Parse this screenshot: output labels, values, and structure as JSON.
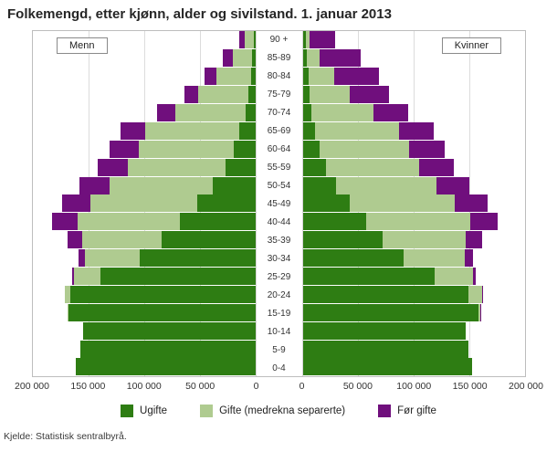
{
  "title": "Folkemengd, etter kjønn, alder og sivilstand. 1. januar 2013",
  "source": "Kjelde: Statistisk sentralbyrå.",
  "chart_data": {
    "type": "bar",
    "subtype": "population_pyramid",
    "left_label": "Menn",
    "right_label": "Kvinner",
    "x_max": 200000,
    "x_ticks_left": [
      "200 000",
      "150 000",
      "100 000",
      "50 000",
      "0"
    ],
    "x_ticks_right": [
      "0",
      "50 000",
      "100 000",
      "150 000",
      "200 000"
    ],
    "age_groups": [
      "90 +",
      "85-89",
      "80-84",
      "75-79",
      "70-74",
      "65-69",
      "60-64",
      "55-59",
      "50-54",
      "45-49",
      "40-44",
      "35-39",
      "30-34",
      "25-29",
      "20-24",
      "15-19",
      "10-14",
      "5-9",
      "0-4"
    ],
    "legend": [
      {
        "key": "ugifte",
        "label": "Ugifte",
        "color": "#2e7d13"
      },
      {
        "key": "gifte",
        "label": "Gifte (medrekna separerte)",
        "color": "#afcb90"
      },
      {
        "key": "for_gifte",
        "label": "Før gifte",
        "color": "#700f7d"
      }
    ],
    "men": [
      {
        "age": "90 +",
        "ugifte": 1500,
        "gifte": 8000,
        "for_gifte": 4500
      },
      {
        "age": "85-89",
        "ugifte": 2500,
        "gifte": 18000,
        "for_gifte": 8500
      },
      {
        "age": "80-84",
        "ugifte": 4000,
        "gifte": 31000,
        "for_gifte": 11000
      },
      {
        "age": "75-79",
        "ugifte": 6000,
        "gifte": 45000,
        "for_gifte": 13000
      },
      {
        "age": "70-74",
        "ugifte": 9000,
        "gifte": 63000,
        "for_gifte": 16000
      },
      {
        "age": "65-69",
        "ugifte": 14000,
        "gifte": 85000,
        "for_gifte": 22000
      },
      {
        "age": "60-64",
        "ugifte": 19000,
        "gifte": 86000,
        "for_gifte": 26000
      },
      {
        "age": "55-59",
        "ugifte": 27000,
        "gifte": 88000,
        "for_gifte": 27000
      },
      {
        "age": "50-54",
        "ugifte": 38000,
        "gifte": 93000,
        "for_gifte": 27000
      },
      {
        "age": "45-49",
        "ugifte": 52000,
        "gifte": 96000,
        "for_gifte": 26000
      },
      {
        "age": "40-44",
        "ugifte": 68000,
        "gifte": 92000,
        "for_gifte": 23000
      },
      {
        "age": "35-39",
        "ugifte": 84000,
        "gifte": 72000,
        "for_gifte": 13000
      },
      {
        "age": "30-34",
        "ugifte": 104000,
        "gifte": 49000,
        "for_gifte": 6000
      },
      {
        "age": "25-29",
        "ugifte": 139000,
        "gifte": 24000,
        "for_gifte": 2000
      },
      {
        "age": "20-24",
        "ugifte": 166000,
        "gifte": 5000,
        "for_gifte": 300
      },
      {
        "age": "15-19",
        "ugifte": 168000,
        "gifte": 600,
        "for_gifte": 0
      },
      {
        "age": "10-14",
        "ugifte": 155000,
        "gifte": 0,
        "for_gifte": 0
      },
      {
        "age": "5-9",
        "ugifte": 157000,
        "gifte": 0,
        "for_gifte": 0
      },
      {
        "age": "0-4",
        "ugifte": 161000,
        "gifte": 0,
        "for_gifte": 0
      }
    ],
    "kvinner": [
      {
        "age": "90 +",
        "ugifte": 2500,
        "gifte": 3500,
        "for_gifte": 23000
      },
      {
        "age": "85-89",
        "ugifte": 4000,
        "gifte": 11000,
        "for_gifte": 37000
      },
      {
        "age": "80-84",
        "ugifte": 5000,
        "gifte": 23000,
        "for_gifte": 41000
      },
      {
        "age": "75-79",
        "ugifte": 6000,
        "gifte": 36000,
        "for_gifte": 36000
      },
      {
        "age": "70-74",
        "ugifte": 8000,
        "gifte": 56000,
        "for_gifte": 31000
      },
      {
        "age": "65-69",
        "ugifte": 11000,
        "gifte": 76000,
        "for_gifte": 31000
      },
      {
        "age": "60-64",
        "ugifte": 15000,
        "gifte": 81000,
        "for_gifte": 32000
      },
      {
        "age": "55-59",
        "ugifte": 21000,
        "gifte": 84000,
        "for_gifte": 31000
      },
      {
        "age": "50-54",
        "ugifte": 30000,
        "gifte": 90000,
        "for_gifte": 30000
      },
      {
        "age": "45-49",
        "ugifte": 42000,
        "gifte": 95000,
        "for_gifte": 29000
      },
      {
        "age": "40-44",
        "ugifte": 57000,
        "gifte": 94000,
        "for_gifte": 24000
      },
      {
        "age": "35-39",
        "ugifte": 72000,
        "gifte": 75000,
        "for_gifte": 14000
      },
      {
        "age": "30-34",
        "ugifte": 91000,
        "gifte": 55000,
        "for_gifte": 7500
      },
      {
        "age": "25-29",
        "ugifte": 119000,
        "gifte": 34000,
        "for_gifte": 2500
      },
      {
        "age": "20-24",
        "ugifte": 149000,
        "gifte": 12000,
        "for_gifte": 600
      },
      {
        "age": "15-19",
        "ugifte": 158000,
        "gifte": 2000,
        "for_gifte": 100
      },
      {
        "age": "10-14",
        "ugifte": 147000,
        "gifte": 0,
        "for_gifte": 0
      },
      {
        "age": "5-9",
        "ugifte": 149000,
        "gifte": 0,
        "for_gifte": 0
      },
      {
        "age": "0-4",
        "ugifte": 152000,
        "gifte": 0,
        "for_gifte": 0
      }
    ]
  }
}
